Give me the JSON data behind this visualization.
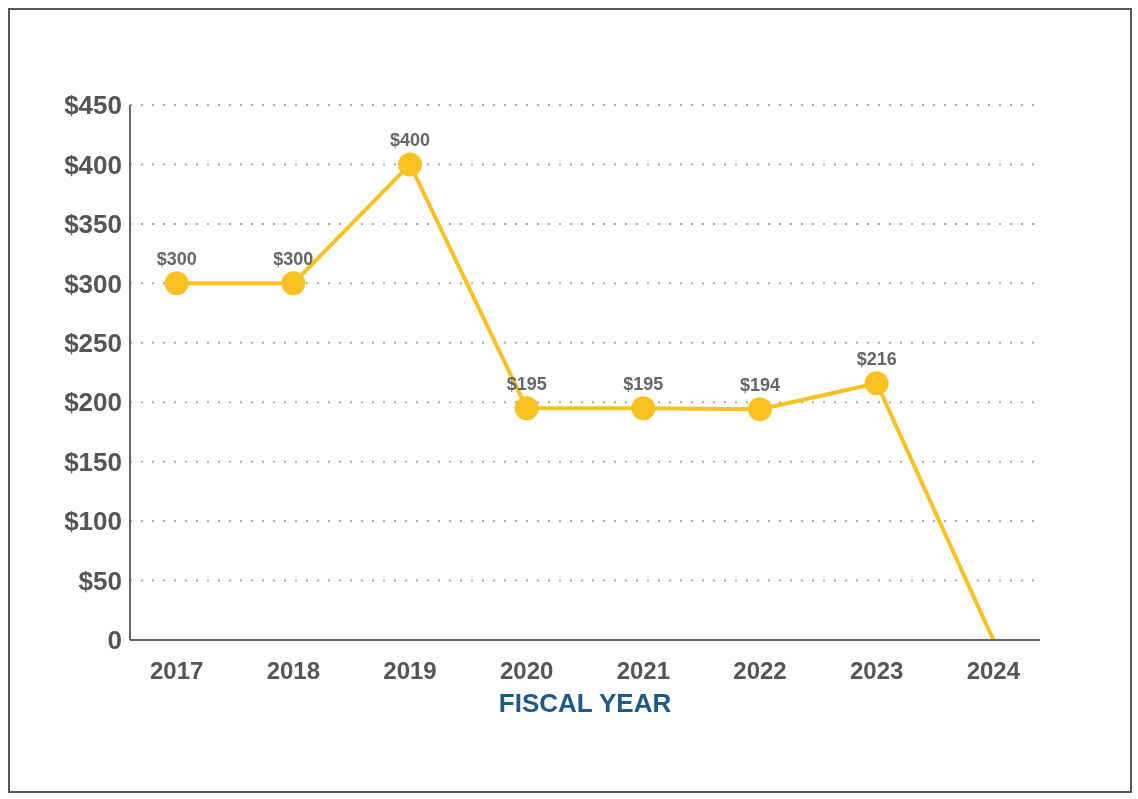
{
  "chart_data": {
    "type": "line",
    "xlabel": "FISCAL YEAR",
    "categories": [
      "2017",
      "2018",
      "2019",
      "2020",
      "2021",
      "2022",
      "2023",
      "2024"
    ],
    "values": [
      300,
      300,
      400,
      195,
      195,
      194,
      216,
      0
    ],
    "value_labels": [
      "$300",
      "$300",
      "$400",
      "$195",
      "$195",
      "$194",
      "$216",
      null
    ],
    "color": "#f9c122",
    "marker": "circle",
    "line_style": "solid",
    "ylim": [
      0,
      450
    ],
    "yticks": [
      {
        "value": 0,
        "label": "0"
      },
      {
        "value": 50,
        "label": "$50"
      },
      {
        "value": 100,
        "label": "$100"
      },
      {
        "value": 150,
        "label": "$150"
      },
      {
        "value": 200,
        "label": "$200"
      },
      {
        "value": 250,
        "label": "$250"
      },
      {
        "value": 300,
        "label": "$300"
      },
      {
        "value": 350,
        "label": "$350"
      },
      {
        "value": 400,
        "label": "$400"
      },
      {
        "value": 450,
        "label": "$450"
      }
    ],
    "grid": "y",
    "legend": false
  }
}
